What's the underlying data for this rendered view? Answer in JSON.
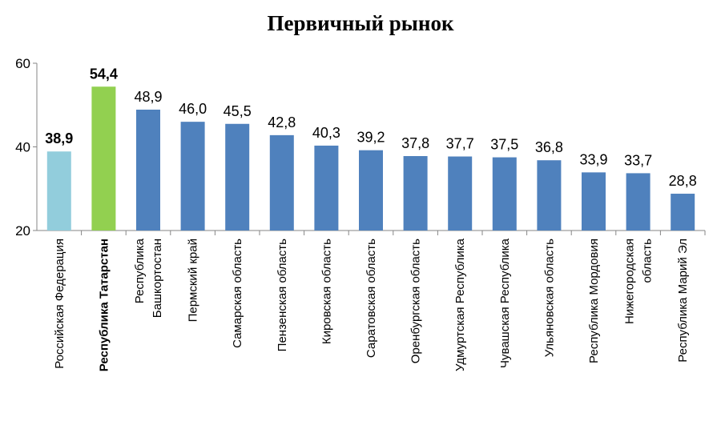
{
  "chart_data": {
    "type": "bar",
    "title": "Первичный рынок",
    "xlabel": "",
    "ylabel": "",
    "ylim": [
      20,
      60
    ],
    "yticks": [
      "20",
      "40",
      "60"
    ],
    "grid": false,
    "legend": "none",
    "categories": [
      [
        "Российская Федерация"
      ],
      [
        "Республика Татарстан"
      ],
      [
        "Республика",
        "Башкортостан"
      ],
      [
        "Пермский край"
      ],
      [
        "Самарская область"
      ],
      [
        "Пензенская область"
      ],
      [
        "Кировская область"
      ],
      [
        "Саратовская область"
      ],
      [
        "Оренбургская область"
      ],
      [
        "Удмуртская Республика"
      ],
      [
        "Чувашская Республика"
      ],
      [
        "Ульяновская область"
      ],
      [
        "Республика Мордовия"
      ],
      [
        "Нижегородская",
        "область"
      ],
      [
        "Республика Марий Эл"
      ]
    ],
    "values": [
      38.9,
      54.4,
      48.9,
      46.0,
      45.5,
      42.8,
      40.3,
      39.2,
      37.8,
      37.7,
      37.5,
      36.8,
      33.9,
      33.7,
      28.8
    ],
    "value_labels": [
      "38,9",
      "54,4",
      "48,9",
      "46,0",
      "45,5",
      "42,8",
      "40,3",
      "39,2",
      "37,8",
      "37,7",
      "37,5",
      "36,8",
      "33,9",
      "33,7",
      "28,8"
    ],
    "bold_indices": [
      0,
      1
    ],
    "bold_category_indices": [
      1
    ],
    "colors": [
      "#92cddc",
      "#92d050",
      "#4f81bd",
      "#4f81bd",
      "#4f81bd",
      "#4f81bd",
      "#4f81bd",
      "#4f81bd",
      "#4f81bd",
      "#4f81bd",
      "#4f81bd",
      "#4f81bd",
      "#4f81bd",
      "#4f81bd",
      "#4f81bd"
    ]
  }
}
